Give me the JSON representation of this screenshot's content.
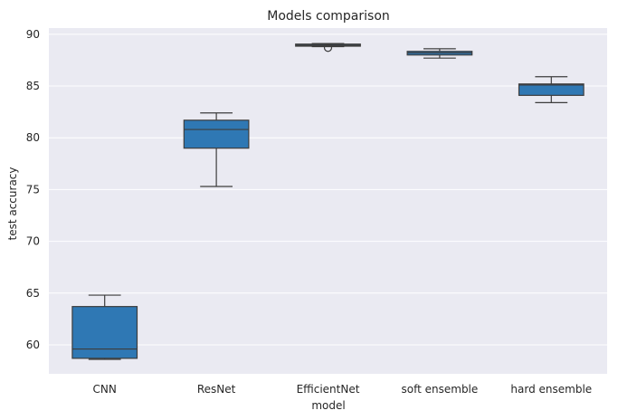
{
  "chart_data": {
    "type": "box",
    "title": "Models comparison",
    "xlabel": "model",
    "ylabel": "test accuracy",
    "ylim": [
      57.2,
      90.6
    ],
    "yticks": [
      60,
      65,
      70,
      75,
      80,
      85,
      90
    ],
    "grid": true,
    "box_color": "#2f78b4",
    "background_color": "#eaeaf2",
    "categories": [
      "CNN",
      "ResNet",
      "EfficientNet",
      "soft ensemble",
      "hard ensemble"
    ],
    "boxes": [
      {
        "whisker_low": 58.6,
        "q1": 58.7,
        "median": 59.6,
        "q3": 63.7,
        "whisker_high": 64.8,
        "outliers": []
      },
      {
        "whisker_low": 75.3,
        "q1": 79.0,
        "median": 80.8,
        "q3": 81.7,
        "whisker_high": 82.4,
        "outliers": []
      },
      {
        "whisker_low": 88.8,
        "q1": 88.85,
        "median": 88.95,
        "q3": 89.05,
        "whisker_high": 89.1,
        "outliers": [
          88.7
        ]
      },
      {
        "whisker_low": 87.7,
        "q1": 88.0,
        "median": 88.2,
        "q3": 88.35,
        "whisker_high": 88.6,
        "outliers": []
      },
      {
        "whisker_low": 83.4,
        "q1": 84.1,
        "median": 85.1,
        "q3": 85.2,
        "whisker_high": 85.9,
        "outliers": []
      }
    ]
  }
}
